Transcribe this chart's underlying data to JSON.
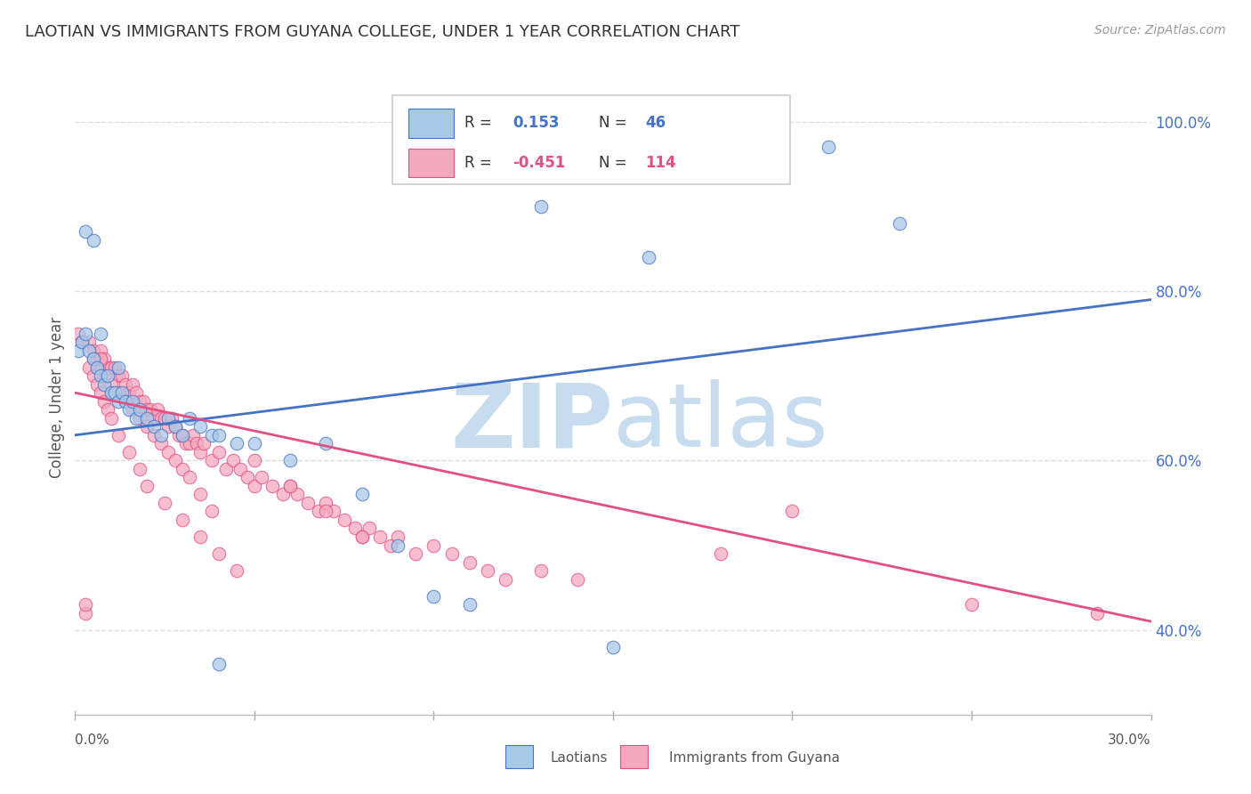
{
  "title": "LAOTIAN VS IMMIGRANTS FROM GUYANA COLLEGE, UNDER 1 YEAR CORRELATION CHART",
  "source": "Source: ZipAtlas.com",
  "ylabel": "College, Under 1 year",
  "xlim": [
    0.0,
    0.3
  ],
  "ylim": [
    0.3,
    1.05
  ],
  "blue_color": "#a8c8e8",
  "pink_color": "#f4a8bf",
  "blue_line_color": "#4472c4",
  "pink_line_color": "#e05080",
  "blue_line_y0": 0.63,
  "blue_line_y1": 0.79,
  "pink_line_y0": 0.68,
  "pink_line_y1": 0.41,
  "watermark_zip": "ZIP",
  "watermark_atlas": "atlas",
  "watermark_color": "#c8dcf0",
  "legend_blue_label": "Laotians",
  "legend_pink_label": "Immigrants from Guyana",
  "ytick_positions": [
    0.4,
    0.6,
    0.8,
    1.0
  ],
  "ytick_labels": [
    "40.0%",
    "60.0%",
    "80.0%",
    "100.0%"
  ],
  "xtick_positions": [
    0.0,
    0.05,
    0.1,
    0.15,
    0.2,
    0.25,
    0.3
  ],
  "gridline_color": "#dddddd",
  "blue_scatter_x": [
    0.001,
    0.002,
    0.003,
    0.004,
    0.005,
    0.006,
    0.007,
    0.008,
    0.009,
    0.01,
    0.011,
    0.012,
    0.013,
    0.014,
    0.015,
    0.016,
    0.017,
    0.018,
    0.02,
    0.022,
    0.024,
    0.026,
    0.028,
    0.03,
    0.032,
    0.035,
    0.038,
    0.04,
    0.045,
    0.05,
    0.06,
    0.07,
    0.08,
    0.09,
    0.1,
    0.11,
    0.15,
    0.16,
    0.21,
    0.23,
    0.003,
    0.005,
    0.007,
    0.012,
    0.13,
    0.04
  ],
  "blue_scatter_y": [
    0.73,
    0.74,
    0.75,
    0.73,
    0.72,
    0.71,
    0.7,
    0.69,
    0.7,
    0.68,
    0.68,
    0.67,
    0.68,
    0.67,
    0.66,
    0.67,
    0.65,
    0.66,
    0.65,
    0.64,
    0.63,
    0.65,
    0.64,
    0.63,
    0.65,
    0.64,
    0.63,
    0.63,
    0.62,
    0.62,
    0.6,
    0.62,
    0.56,
    0.5,
    0.44,
    0.43,
    0.38,
    0.84,
    0.97,
    0.88,
    0.87,
    0.86,
    0.75,
    0.71,
    0.9,
    0.36
  ],
  "pink_scatter_x": [
    0.001,
    0.002,
    0.003,
    0.003,
    0.004,
    0.005,
    0.006,
    0.007,
    0.008,
    0.009,
    0.01,
    0.011,
    0.012,
    0.013,
    0.014,
    0.015,
    0.016,
    0.017,
    0.018,
    0.019,
    0.02,
    0.021,
    0.022,
    0.023,
    0.024,
    0.025,
    0.026,
    0.027,
    0.028,
    0.029,
    0.03,
    0.031,
    0.032,
    0.033,
    0.034,
    0.035,
    0.036,
    0.038,
    0.04,
    0.042,
    0.044,
    0.046,
    0.048,
    0.05,
    0.052,
    0.055,
    0.058,
    0.06,
    0.062,
    0.065,
    0.068,
    0.07,
    0.072,
    0.075,
    0.078,
    0.08,
    0.082,
    0.085,
    0.088,
    0.09,
    0.095,
    0.1,
    0.105,
    0.11,
    0.115,
    0.12,
    0.005,
    0.006,
    0.007,
    0.008,
    0.01,
    0.012,
    0.014,
    0.016,
    0.018,
    0.02,
    0.022,
    0.024,
    0.026,
    0.028,
    0.03,
    0.032,
    0.035,
    0.038,
    0.004,
    0.005,
    0.006,
    0.007,
    0.008,
    0.009,
    0.01,
    0.012,
    0.015,
    0.018,
    0.02,
    0.025,
    0.03,
    0.035,
    0.04,
    0.045,
    0.05,
    0.06,
    0.07,
    0.08,
    0.13,
    0.14,
    0.2,
    0.25,
    0.285,
    0.18
  ],
  "pink_scatter_y": [
    0.75,
    0.74,
    0.42,
    0.43,
    0.74,
    0.73,
    0.72,
    0.73,
    0.72,
    0.71,
    0.71,
    0.71,
    0.7,
    0.7,
    0.69,
    0.68,
    0.69,
    0.68,
    0.67,
    0.67,
    0.66,
    0.66,
    0.65,
    0.66,
    0.65,
    0.65,
    0.64,
    0.65,
    0.64,
    0.63,
    0.63,
    0.62,
    0.62,
    0.63,
    0.62,
    0.61,
    0.62,
    0.6,
    0.61,
    0.59,
    0.6,
    0.59,
    0.58,
    0.57,
    0.58,
    0.57,
    0.56,
    0.57,
    0.56,
    0.55,
    0.54,
    0.55,
    0.54,
    0.53,
    0.52,
    0.51,
    0.52,
    0.51,
    0.5,
    0.51,
    0.49,
    0.5,
    0.49,
    0.48,
    0.47,
    0.46,
    0.72,
    0.71,
    0.72,
    0.7,
    0.69,
    0.68,
    0.67,
    0.66,
    0.65,
    0.64,
    0.63,
    0.62,
    0.61,
    0.6,
    0.59,
    0.58,
    0.56,
    0.54,
    0.71,
    0.7,
    0.69,
    0.68,
    0.67,
    0.66,
    0.65,
    0.63,
    0.61,
    0.59,
    0.57,
    0.55,
    0.53,
    0.51,
    0.49,
    0.47,
    0.6,
    0.57,
    0.54,
    0.51,
    0.47,
    0.46,
    0.54,
    0.43,
    0.42,
    0.49
  ]
}
